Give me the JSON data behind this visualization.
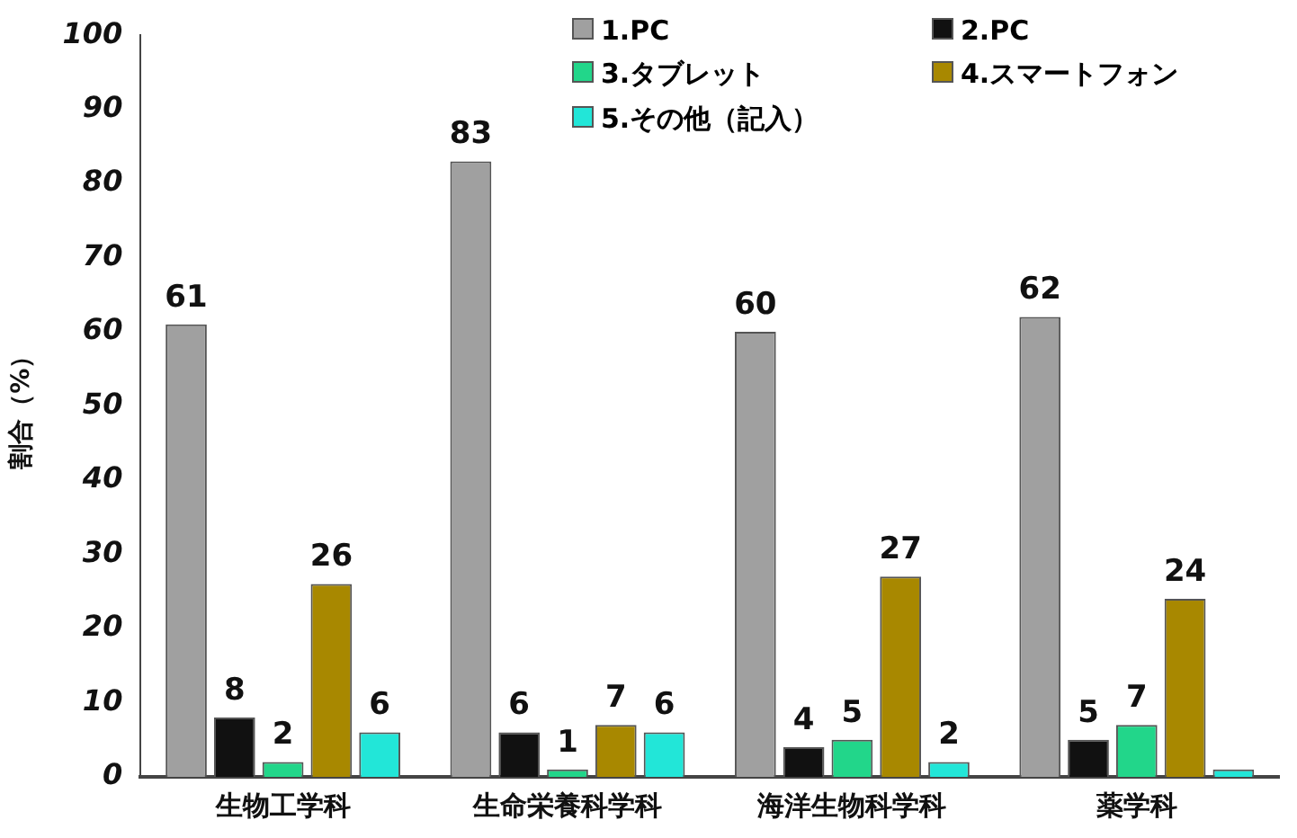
{
  "chart_data": {
    "type": "bar",
    "ylabel": "割合（%）",
    "categories": [
      "生物工学科",
      "生命栄養科学科",
      "海洋生物科学科",
      "薬学科"
    ],
    "series": [
      {
        "name": "1.PC",
        "color": "#a0a0a0",
        "values": [
          61,
          83,
          60,
          62
        ],
        "value_labels": [
          "61",
          "83",
          "60",
          "62"
        ]
      },
      {
        "name": "2.PC",
        "color": "#111111",
        "values": [
          8,
          6,
          4,
          5
        ],
        "value_labels": [
          "8",
          "6",
          "4",
          "5"
        ]
      },
      {
        "name": "3.タブレット",
        "color": "#22d68a",
        "values": [
          2,
          1,
          5,
          7
        ],
        "value_labels": [
          "2",
          "1",
          "5",
          "7"
        ]
      },
      {
        "name": "4.スマートフォン",
        "color": "#a88800",
        "values": [
          26,
          7,
          27,
          24
        ],
        "value_labels": [
          "26",
          "7",
          "27",
          "24"
        ]
      },
      {
        "name": "5.その他（記入）",
        "color": "#22e6d8",
        "values": [
          6,
          6,
          2,
          1
        ],
        "value_labels": [
          "6",
          "6",
          "2",
          null
        ]
      }
    ],
    "ylim": [
      0,
      100
    ],
    "yticks": [
      0,
      10,
      20,
      30,
      40,
      50,
      60,
      70,
      80,
      90,
      100
    ],
    "grid": false,
    "legend": "top right"
  }
}
